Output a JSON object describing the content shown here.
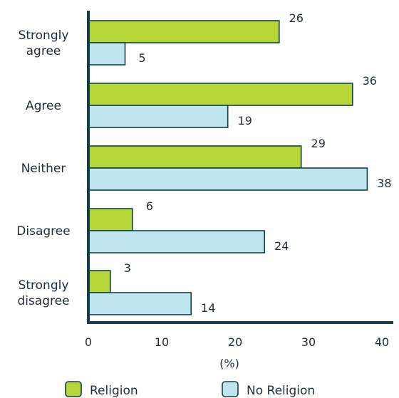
{
  "colors": {
    "religion": "#b6d638",
    "no_religion": "#bfe6ef",
    "bar_stroke": "#12404a",
    "axis": "#12404a"
  },
  "chart_data": {
    "type": "bar",
    "orientation": "horizontal",
    "categories": [
      [
        "Strongly",
        "agree"
      ],
      [
        "Agree"
      ],
      [
        "Neither"
      ],
      [
        "Disagree"
      ],
      [
        "Strongly",
        "disagree"
      ]
    ],
    "series": [
      {
        "name": "Religion",
        "values": [
          26,
          36,
          29,
          6,
          3
        ]
      },
      {
        "name": "No Religion",
        "values": [
          5,
          19,
          38,
          24,
          14
        ]
      }
    ],
    "xlabel": "(%)",
    "xlim": [
      0,
      40
    ],
    "xticks": [
      0,
      10,
      20,
      30,
      40
    ],
    "legend_position": "bottom",
    "grid": false
  },
  "legend": {
    "religion_label": "Religion",
    "no_religion_label": "No Religion"
  }
}
